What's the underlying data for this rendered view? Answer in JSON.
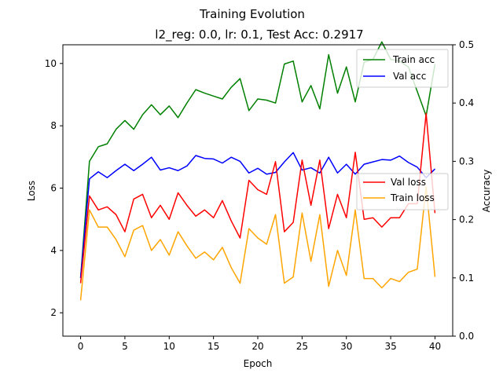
{
  "chart_data": {
    "type": "line",
    "title": "Training Evolution",
    "subtitle": "l2_reg: 0.0, lr: 0.1, Test Acc: 0.2917",
    "xlabel": "Epoch",
    "ylabel_left": "Loss",
    "ylabel_right": "Accuracy",
    "xlim": [
      -2,
      42
    ],
    "ylim_left": [
      1.25,
      10.6
    ],
    "ylim_right": [
      0.0,
      0.5
    ],
    "x_ticks": [
      0,
      5,
      10,
      15,
      20,
      25,
      30,
      35,
      40
    ],
    "y_ticks_left": [
      2,
      4,
      6,
      8,
      10
    ],
    "y_ticks_right": [
      0.0,
      0.1,
      0.2,
      0.3,
      0.4,
      0.5
    ],
    "x_tick_labels": [
      "0",
      "5",
      "10",
      "15",
      "20",
      "25",
      "30",
      "35",
      "40"
    ],
    "y_tick_labels_left": [
      "2",
      "4",
      "6",
      "8",
      "10"
    ],
    "y_tick_labels_right": [
      "0.0",
      "0.1",
      "0.2",
      "0.3",
      "0.4",
      "0.5"
    ],
    "grid": false,
    "x": [
      0,
      1,
      2,
      3,
      4,
      5,
      6,
      7,
      8,
      9,
      10,
      11,
      12,
      13,
      14,
      15,
      16,
      17,
      18,
      19,
      20,
      21,
      22,
      23,
      24,
      25,
      26,
      27,
      28,
      29,
      30,
      31,
      32,
      33,
      34,
      35,
      36,
      37,
      38,
      39,
      40
    ],
    "series_right": [
      {
        "name": "Train acc",
        "color": "#008000",
        "values": [
          0.1,
          0.3,
          0.325,
          0.33,
          0.355,
          0.37,
          0.355,
          0.38,
          0.397,
          0.38,
          0.395,
          0.375,
          0.4,
          0.423,
          0.417,
          0.412,
          0.407,
          0.427,
          0.442,
          0.387,
          0.407,
          0.405,
          0.4,
          0.467,
          0.472,
          0.402,
          0.43,
          0.39,
          0.483,
          0.417,
          0.462,
          0.402,
          0.47,
          0.475,
          0.505,
          0.475,
          0.472,
          0.462,
          0.42,
          0.378,
          0.467
        ]
      },
      {
        "name": "Val acc",
        "color": "#0000ff",
        "values": [
          0.1,
          0.27,
          0.282,
          0.272,
          0.284,
          0.295,
          0.284,
          0.295,
          0.307,
          0.285,
          0.289,
          0.284,
          0.292,
          0.31,
          0.305,
          0.304,
          0.297,
          0.307,
          0.3,
          0.28,
          0.288,
          0.278,
          0.281,
          0.299,
          0.315,
          0.285,
          0.289,
          0.28,
          0.307,
          0.28,
          0.295,
          0.278,
          0.295,
          0.299,
          0.303,
          0.302,
          0.309,
          0.298,
          0.29,
          0.272,
          0.287
        ]
      }
    ],
    "series_left": [
      {
        "name": "Val loss",
        "color": "#ff0000",
        "values": [
          2.95,
          5.75,
          5.3,
          5.4,
          5.15,
          4.6,
          5.65,
          5.8,
          5.05,
          5.45,
          5.0,
          5.85,
          5.45,
          5.1,
          5.3,
          5.05,
          5.6,
          4.95,
          4.4,
          6.25,
          5.95,
          5.8,
          6.85,
          4.6,
          4.9,
          6.9,
          5.45,
          6.9,
          4.7,
          5.8,
          5.05,
          7.15,
          5.0,
          5.05,
          4.75,
          5.05,
          5.05,
          5.5,
          5.5,
          8.4,
          5.2
        ]
      },
      {
        "name": "Train loss",
        "color": "#ffa500",
        "values": [
          2.4,
          5.3,
          4.75,
          4.75,
          4.35,
          3.8,
          4.65,
          4.8,
          4.0,
          4.35,
          3.85,
          4.6,
          4.15,
          3.75,
          3.95,
          3.7,
          4.1,
          3.45,
          2.95,
          4.7,
          4.4,
          4.2,
          5.15,
          2.95,
          3.15,
          5.2,
          3.65,
          5.15,
          2.85,
          4.0,
          3.2,
          5.3,
          3.1,
          3.1,
          2.8,
          3.1,
          3.0,
          3.3,
          3.4,
          6.05,
          3.15
        ]
      }
    ],
    "legend_upper": {
      "placement": "top-right",
      "entries": [
        "Train acc",
        "Val acc"
      ]
    },
    "legend_lower": {
      "placement": "center-right",
      "entries": [
        "Val loss",
        "Train loss"
      ]
    }
  }
}
